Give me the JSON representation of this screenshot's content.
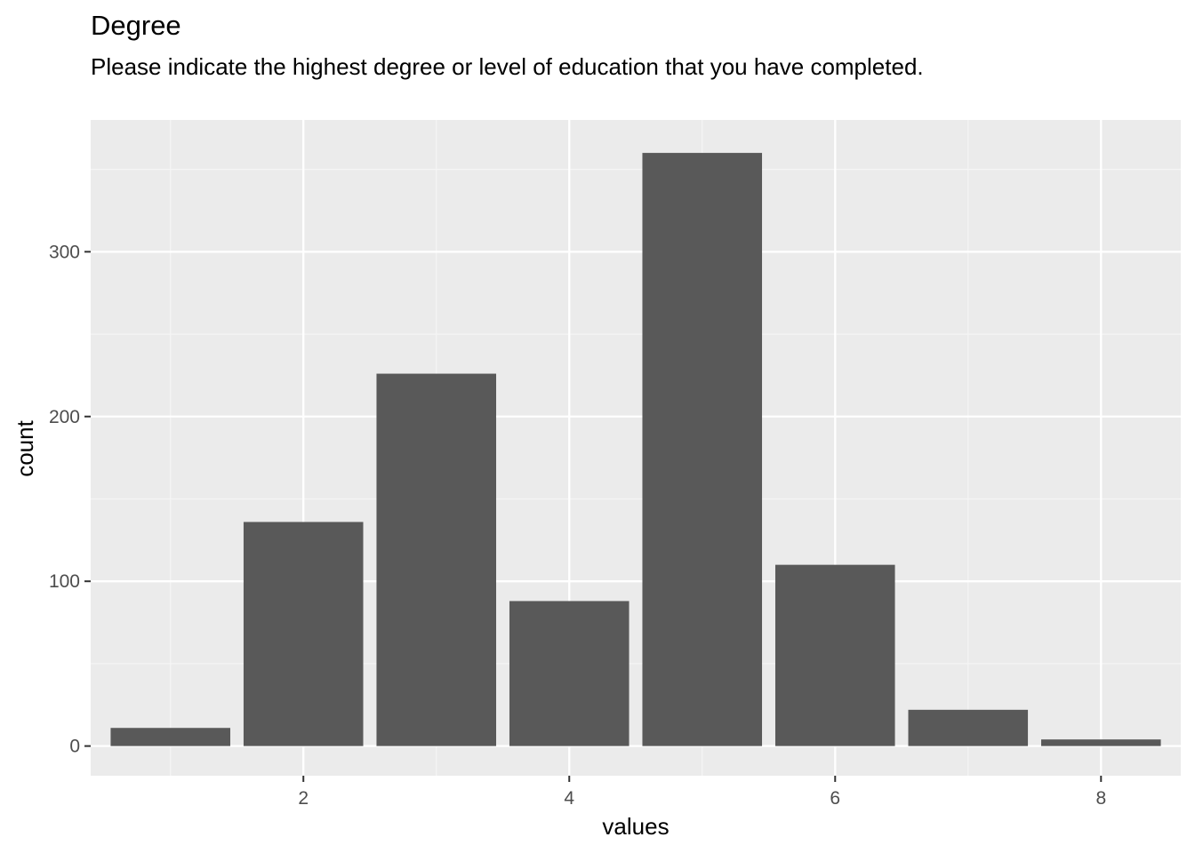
{
  "chart_data": {
    "type": "bar",
    "title": "Degree",
    "subtitle": "Please indicate the highest degree or level of education that you have completed.",
    "xlabel": "values",
    "ylabel": "count",
    "categories": [
      1,
      2,
      3,
      4,
      5,
      6,
      7,
      8
    ],
    "values": [
      11,
      136,
      226,
      88,
      360,
      110,
      22,
      4
    ],
    "xlim": [
      0.4,
      8.6
    ],
    "ylim": [
      -18,
      380
    ],
    "x_ticks": [
      2,
      4,
      6,
      8
    ],
    "y_ticks": [
      0,
      100,
      200,
      300
    ],
    "grid": true,
    "colors": {
      "bar": "#595959",
      "panel": "#ebebeb",
      "grid_major": "#ffffff",
      "grid_minor": "#f5f5f5"
    }
  }
}
